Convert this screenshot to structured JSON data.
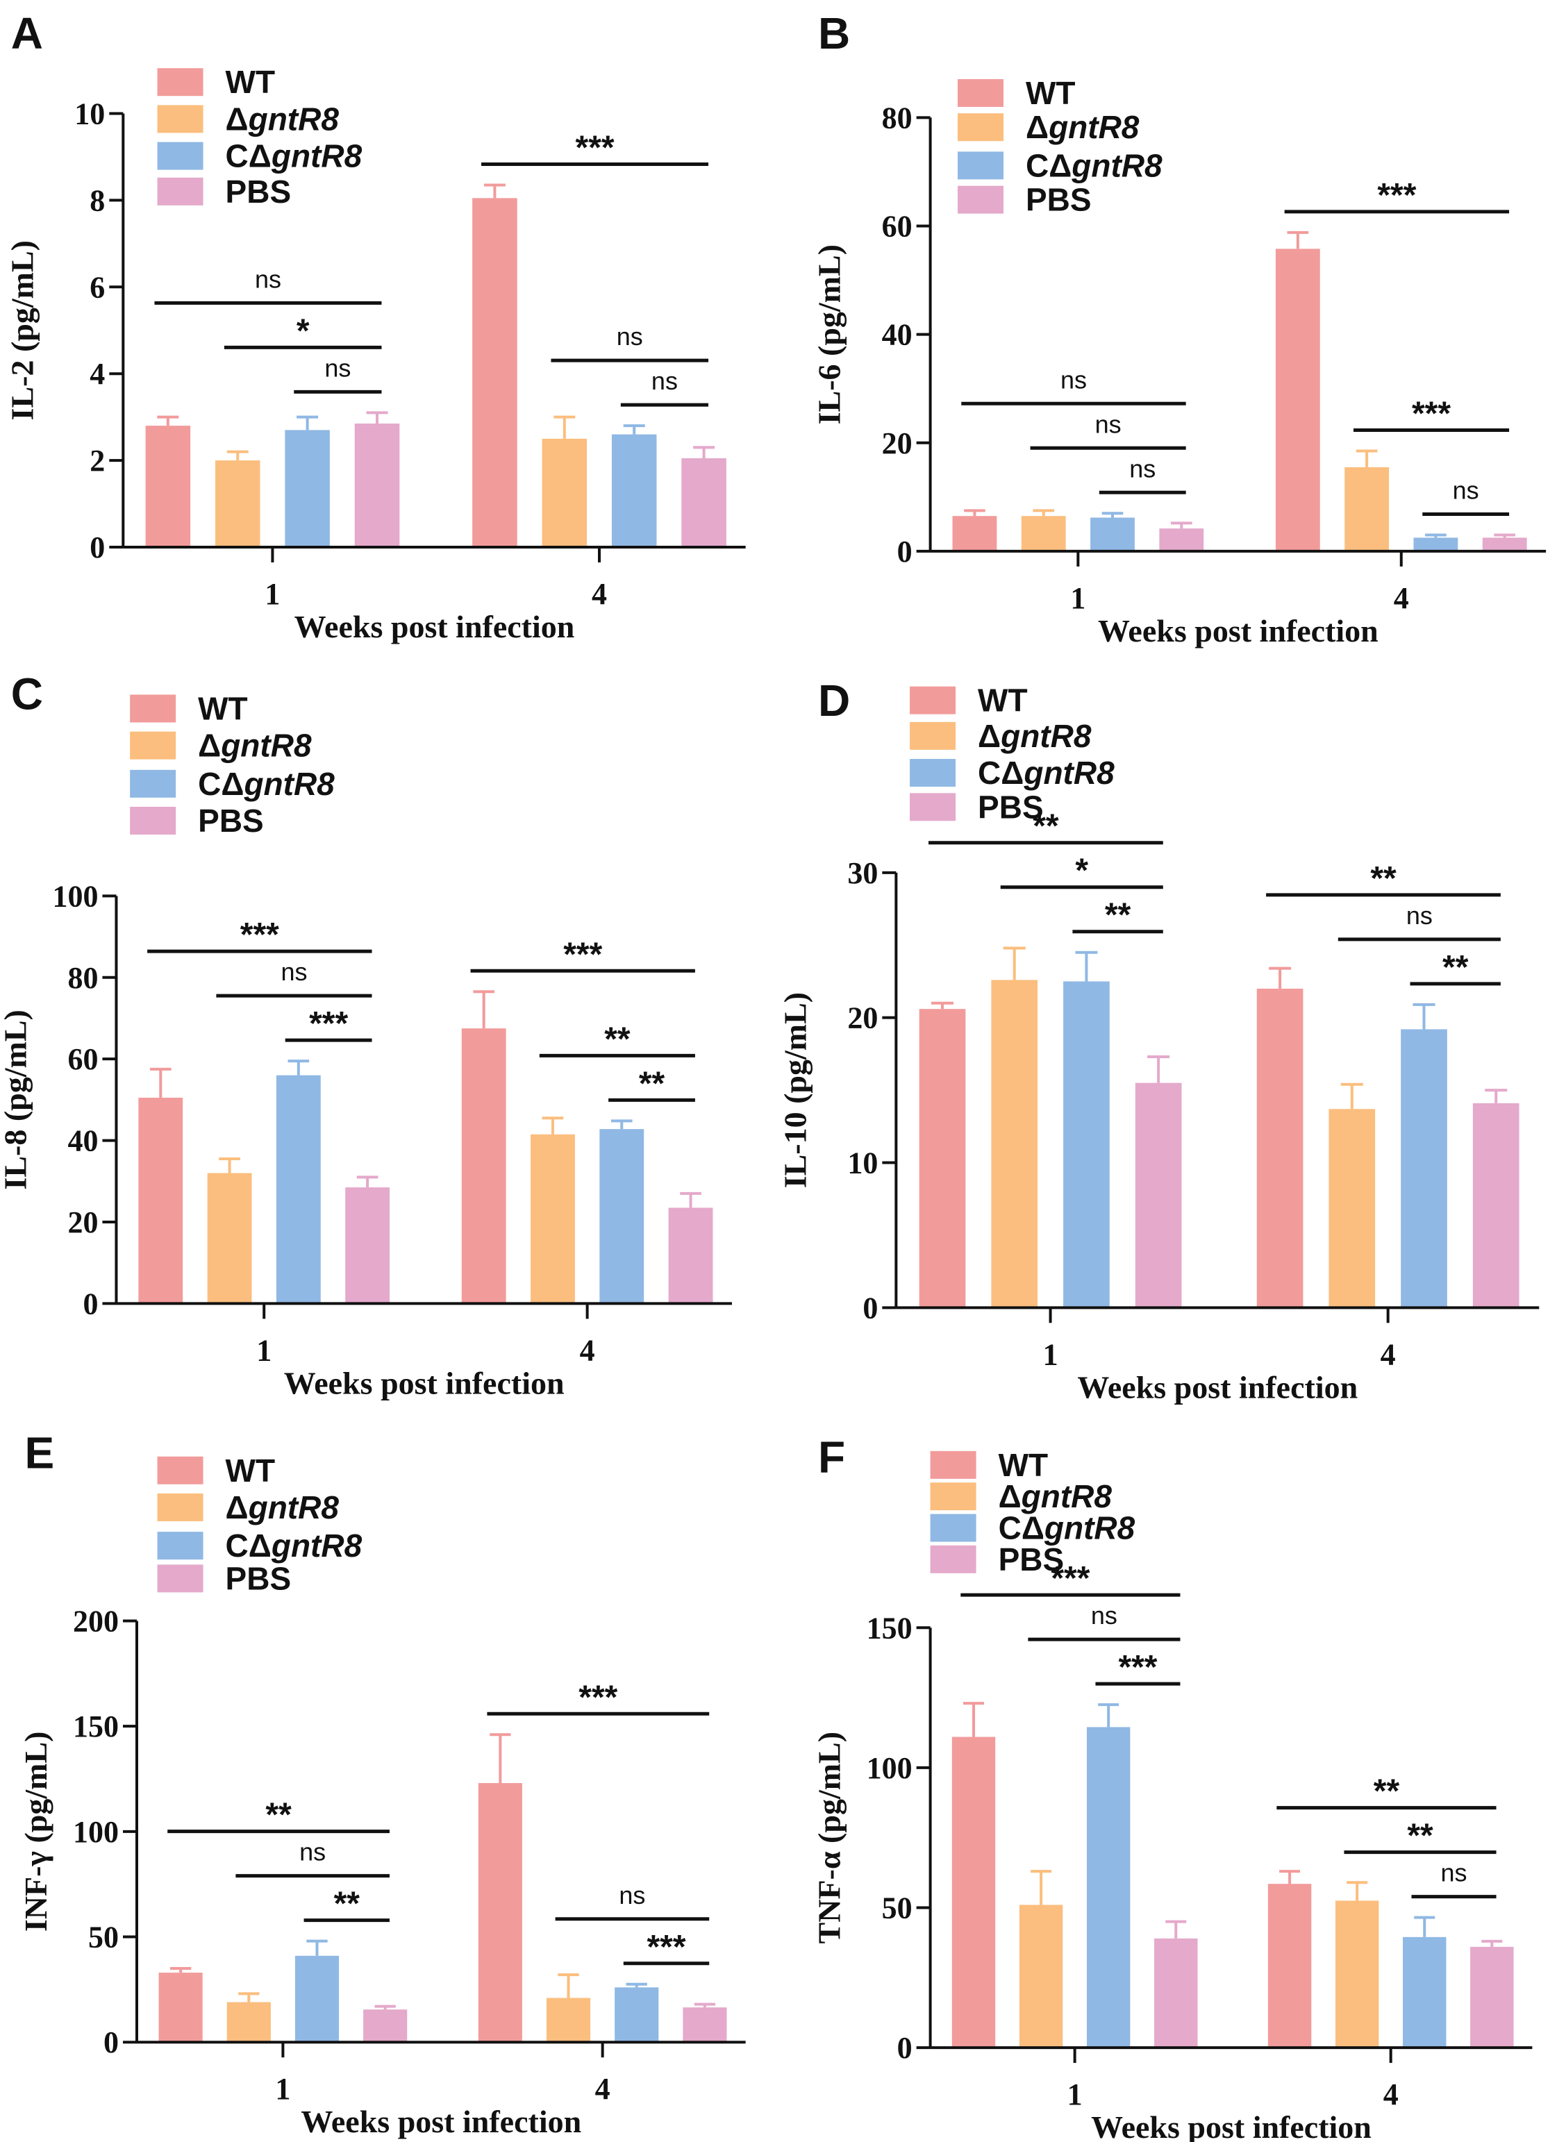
{
  "colors": {
    "WT": "#f29b9b",
    "ΔgntR8": "#fbbe7e",
    "CΔgntR8": "#8fb8e4",
    "PBS": "#e4a9cb"
  },
  "chart_data": [
    {
      "panel": "A",
      "type": "bar",
      "ylabel": "IL-2 (pg/mL)",
      "xlabel": "Weeks post infection",
      "categories": [
        "1",
        "4"
      ],
      "ylim": [
        0,
        10
      ],
      "yticks": [
        0,
        2,
        4,
        6,
        8,
        10
      ],
      "series": [
        {
          "name": "WT",
          "values": [
            2.8,
            8.05
          ],
          "errors": [
            0.2,
            0.3
          ]
        },
        {
          "name": "ΔgntR8",
          "values": [
            2.0,
            2.5
          ],
          "errors": [
            0.2,
            0.5
          ]
        },
        {
          "name": "CΔgntR8",
          "values": [
            2.7,
            2.6
          ],
          "errors": [
            0.3,
            0.2
          ]
        },
        {
          "name": "PBS",
          "values": [
            2.85,
            2.05
          ],
          "errors": [
            0.25,
            0.25
          ]
        }
      ],
      "significance": [
        [
          "ns",
          "*",
          "ns"
        ],
        [
          "***",
          "ns",
          "ns"
        ]
      ]
    },
    {
      "panel": "B",
      "type": "bar",
      "ylabel": "IL-6 (pg/mL)",
      "xlabel": "Weeks post infection",
      "categories": [
        "1",
        "4"
      ],
      "ylim": [
        0,
        80
      ],
      "yticks": [
        0,
        20,
        40,
        60,
        80
      ],
      "series": [
        {
          "name": "WT",
          "values": [
            6.5,
            55.8
          ],
          "errors": [
            1,
            3
          ]
        },
        {
          "name": "ΔgntR8",
          "values": [
            6.5,
            15.5
          ],
          "errors": [
            1,
            3
          ]
        },
        {
          "name": "CΔgntR8",
          "values": [
            6.2,
            2.5
          ],
          "errors": [
            0.8,
            0.5
          ]
        },
        {
          "name": "PBS",
          "values": [
            4.2,
            2.5
          ],
          "errors": [
            1,
            0.5
          ]
        }
      ],
      "significance": [
        [
          "ns",
          "ns",
          "ns"
        ],
        [
          "***",
          "***",
          "ns"
        ]
      ]
    },
    {
      "panel": "C",
      "type": "bar",
      "ylabel": "IL-8 (pg/mL)",
      "xlabel": "Weeks post infection",
      "categories": [
        "1",
        "4"
      ],
      "ylim": [
        0,
        100
      ],
      "yticks": [
        0,
        20,
        40,
        60,
        80,
        100
      ],
      "series": [
        {
          "name": "WT",
          "values": [
            50.5,
            67.5
          ],
          "errors": [
            7,
            9
          ]
        },
        {
          "name": "ΔgntR8",
          "values": [
            32,
            41.5
          ],
          "errors": [
            3.5,
            4
          ]
        },
        {
          "name": "CΔgntR8",
          "values": [
            56,
            42.8
          ],
          "errors": [
            3.5,
            2
          ]
        },
        {
          "name": "PBS",
          "values": [
            28.5,
            23.5
          ],
          "errors": [
            2.5,
            3.5
          ]
        }
      ],
      "significance": [
        [
          "***",
          "ns",
          "***"
        ],
        [
          "***",
          "**",
          "**"
        ]
      ]
    },
    {
      "panel": "D",
      "type": "bar",
      "ylabel": "IL-10 (pg/mL)",
      "xlabel": "Weeks post infection",
      "categories": [
        "1",
        "4"
      ],
      "ylim": [
        0,
        30
      ],
      "yticks": [
        0,
        10,
        20,
        30
      ],
      "series": [
        {
          "name": "WT",
          "values": [
            20.6,
            22
          ],
          "errors": [
            0.4,
            1.4
          ]
        },
        {
          "name": "ΔgntR8",
          "values": [
            22.6,
            13.7
          ],
          "errors": [
            2.2,
            1.7
          ]
        },
        {
          "name": "CΔgntR8",
          "values": [
            22.5,
            19.2
          ],
          "errors": [
            2,
            1.7
          ]
        },
        {
          "name": "PBS",
          "values": [
            15.5,
            14.1
          ],
          "errors": [
            1.8,
            0.9
          ]
        }
      ],
      "significance": [
        [
          "**",
          "*",
          "**"
        ],
        [
          "**",
          "ns",
          "**"
        ]
      ]
    },
    {
      "panel": "E",
      "type": "bar",
      "ylabel": "INF-γ (pg/mL)",
      "xlabel": "Weeks post infection",
      "categories": [
        "1",
        "4"
      ],
      "ylim": [
        0,
        200
      ],
      "yticks": [
        0,
        50,
        100,
        150,
        200
      ],
      "series": [
        {
          "name": "WT",
          "values": [
            33,
            123
          ],
          "errors": [
            2,
            23
          ]
        },
        {
          "name": "ΔgntR8",
          "values": [
            19,
            21
          ],
          "errors": [
            4,
            11
          ]
        },
        {
          "name": "CΔgntR8",
          "values": [
            41,
            26
          ],
          "errors": [
            7,
            1.5
          ]
        },
        {
          "name": "PBS",
          "values": [
            15.5,
            16.5
          ],
          "errors": [
            1.5,
            1.5
          ]
        }
      ],
      "significance": [
        [
          "**",
          "ns",
          "**"
        ],
        [
          "***",
          "ns",
          "***"
        ]
      ]
    },
    {
      "panel": "F",
      "type": "bar",
      "ylabel": "TNF-α (pg/mL)",
      "xlabel": "Weeks post infection",
      "categories": [
        "1",
        "4"
      ],
      "ylim": [
        0,
        150
      ],
      "yticks": [
        0,
        50,
        100,
        150
      ],
      "series": [
        {
          "name": "WT",
          "values": [
            111,
            58.5
          ],
          "errors": [
            12,
            4.5
          ]
        },
        {
          "name": "ΔgntR8",
          "values": [
            51,
            52.5
          ],
          "errors": [
            12,
            6.5
          ]
        },
        {
          "name": "CΔgntR8",
          "values": [
            114.5,
            39.5
          ],
          "errors": [
            8,
            7
          ]
        },
        {
          "name": "PBS",
          "values": [
            39,
            36
          ],
          "errors": [
            6,
            2
          ]
        }
      ],
      "significance": [
        [
          "***",
          "ns",
          "***"
        ],
        [
          "**",
          "**",
          "ns"
        ]
      ]
    }
  ]
}
